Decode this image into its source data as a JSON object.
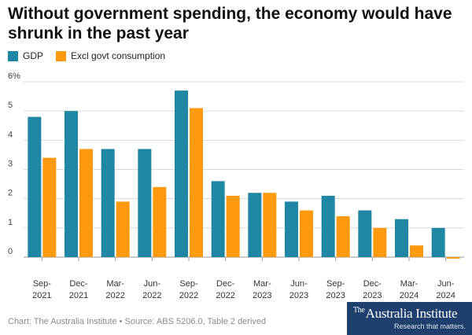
{
  "chart_data": {
    "type": "bar",
    "title": "Without government spending, the economy would have shrunk in the past year",
    "categories": [
      [
        "Sep-",
        "2021"
      ],
      [
        "Dec-",
        "2021"
      ],
      [
        "Mar-",
        "2022"
      ],
      [
        "Jun-",
        "2022"
      ],
      [
        "Sep-",
        "2022"
      ],
      [
        "Dec-",
        "2022"
      ],
      [
        "Mar-",
        "2023"
      ],
      [
        "Jun-",
        "2023"
      ],
      [
        "Sep-",
        "2023"
      ],
      [
        "Dec-",
        "2023"
      ],
      [
        "Mar-",
        "2024"
      ],
      [
        "Jun-",
        "2024"
      ]
    ],
    "series": [
      {
        "name": "GDP",
        "color": "#1f87a3",
        "values": [
          4.8,
          5.0,
          3.7,
          3.7,
          5.7,
          2.6,
          2.2,
          1.9,
          2.1,
          1.6,
          1.3,
          1.0
        ]
      },
      {
        "name": "Excl govt consumption",
        "color": "#ff9a0f",
        "values": [
          3.4,
          3.7,
          1.9,
          2.4,
          5.1,
          2.1,
          2.2,
          1.6,
          1.4,
          1.0,
          0.4,
          -0.05
        ]
      }
    ],
    "yticks": [
      "0",
      "1",
      "2",
      "3",
      "4",
      "5",
      "6%"
    ],
    "ylim": [
      0,
      6
    ],
    "xlabel": "",
    "ylabel": "",
    "grid": true,
    "legend_position": "top-left"
  },
  "footer": {
    "source": "Chart: The Australia Institute • Source: ABS 5206.0, Table 2 derived"
  },
  "logo": {
    "the": "The",
    "name": "Australia Institute",
    "tagline": "Research that matters."
  }
}
